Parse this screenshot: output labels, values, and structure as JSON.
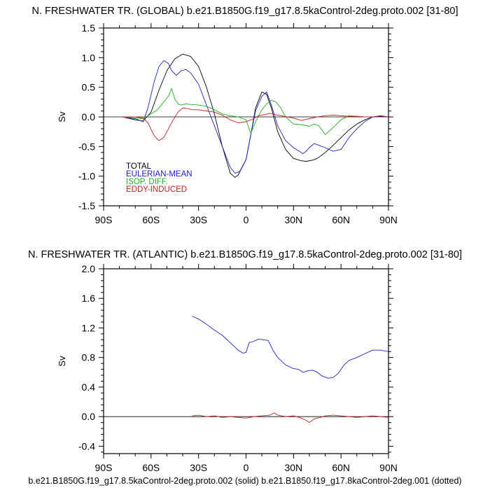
{
  "footer": "b.e21.B1850G.f19_g17.8.5kaControl-2deg.proto.002 (solid) b.e21.B1850.f19_g17.8kaControl-2deg.001 (dotted)",
  "chart_data": [
    {
      "type": "line",
      "title": "N. FRESHWATER TR. (GLOBAL) b.e21.B1850G.f19_g17.8.5kaControl-2deg.proto.002 [31-80]",
      "xlabel": "",
      "ylabel": "Sv",
      "xlim": [
        -90,
        90
      ],
      "ylim": [
        -1.5,
        1.5
      ],
      "x_ticks": [
        -90,
        -60,
        -30,
        0,
        30,
        60,
        90
      ],
      "x_tick_labels": [
        "90S",
        "60S",
        "30S",
        "0",
        "30N",
        "60N",
        "90N"
      ],
      "y_ticks": [
        -1.5,
        -1.0,
        -0.5,
        0.0,
        0.5,
        1.0,
        1.5
      ],
      "y_tick_labels": [
        "-1.5",
        "-1.0",
        "-0.5",
        "0.0",
        "0.5",
        "1.0",
        "1.5"
      ],
      "legend_position": "bottom-left",
      "zero_line": true,
      "series": [
        {
          "name": "TOTAL",
          "color": "#000000",
          "x": [
            -78,
            -70,
            -65,
            -60,
            -55,
            -50,
            -45,
            -40,
            -35,
            -30,
            -25,
            -20,
            -15,
            -10,
            -7,
            -5,
            0,
            3,
            6,
            10,
            13,
            16,
            20,
            25,
            30,
            35,
            38,
            42,
            45,
            50,
            55,
            60,
            65,
            70,
            75,
            80,
            85,
            90
          ],
          "y": [
            0,
            -0.05,
            -0.07,
            0.08,
            0.45,
            0.78,
            0.98,
            1.06,
            1.02,
            0.85,
            0.5,
            0.05,
            -0.5,
            -0.95,
            -1.02,
            -0.98,
            -0.72,
            -0.3,
            0.15,
            0.42,
            0.38,
            0.15,
            -0.25,
            -0.55,
            -0.7,
            -0.74,
            -0.75,
            -0.73,
            -0.7,
            -0.6,
            -0.48,
            -0.35,
            -0.22,
            -0.12,
            -0.05,
            0,
            0.01,
            0
          ]
        },
        {
          "name": "EULERIAN-MEAN",
          "color": "#2020c0",
          "x": [
            -78,
            -70,
            -65,
            -62,
            -58,
            -55,
            -52,
            -49,
            -47,
            -44,
            -41,
            -38,
            -35,
            -30,
            -25,
            -20,
            -15,
            -10,
            -7,
            -4,
            0,
            3,
            6,
            10,
            13,
            16,
            20,
            25,
            30,
            33,
            36,
            38,
            40,
            43,
            46,
            50,
            55,
            60,
            65,
            70,
            75,
            80,
            85,
            90
          ],
          "y": [
            0,
            -0.03,
            -0.08,
            0.15,
            0.6,
            0.85,
            0.95,
            0.9,
            0.78,
            0.7,
            0.78,
            0.8,
            0.74,
            0.55,
            0.2,
            -0.15,
            -0.5,
            -0.85,
            -0.95,
            -0.92,
            -0.72,
            -0.3,
            0.1,
            0.35,
            0.42,
            0.2,
            -0.15,
            -0.4,
            -0.52,
            -0.57,
            -0.62,
            -0.58,
            -0.52,
            -0.45,
            -0.48,
            -0.52,
            -0.58,
            -0.55,
            -0.35,
            -0.2,
            -0.08,
            0,
            0.02,
            0
          ]
        },
        {
          "name": "ISOP. DIFF.",
          "color": "#20b020",
          "x": [
            -78,
            -70,
            -65,
            -60,
            -56,
            -52,
            -49,
            -47,
            -45,
            -43,
            -41,
            -38,
            -35,
            -30,
            -25,
            -20,
            -15,
            -10,
            -5,
            0,
            3,
            6,
            10,
            13,
            16,
            19,
            22,
            25,
            30,
            35,
            40,
            43,
            46,
            50,
            55,
            60,
            65,
            70,
            75,
            80,
            85,
            90
          ],
          "y": [
            0,
            -0.02,
            -0.03,
            0.05,
            0.12,
            0.25,
            0.35,
            0.48,
            0.3,
            0.22,
            0.2,
            0.22,
            0.21,
            0.2,
            0.18,
            0.12,
            0.05,
            0.02,
            0,
            -0.05,
            -0.28,
            -0.08,
            0.12,
            0.22,
            0.28,
            0.25,
            0.15,
            0.0,
            -0.12,
            -0.13,
            -0.16,
            -0.12,
            -0.15,
            -0.3,
            -0.18,
            -0.05,
            0.02,
            0.01,
            0,
            0,
            0,
            0
          ]
        },
        {
          "name": "EDDY-INDUCED",
          "color": "#c02020",
          "x": [
            -78,
            -70,
            -65,
            -62,
            -58,
            -55,
            -52,
            -49,
            -46,
            -43,
            -40,
            -37,
            -34,
            -30,
            -25,
            -20,
            -15,
            -10,
            -5,
            0,
            4,
            8,
            12,
            15,
            18,
            22,
            26,
            30,
            35,
            40,
            45,
            50,
            55,
            60,
            65,
            70,
            75,
            80,
            85,
            90
          ],
          "y": [
            0,
            0,
            -0.02,
            -0.1,
            -0.32,
            -0.4,
            -0.35,
            -0.2,
            -0.05,
            0.08,
            0.15,
            0.14,
            0.12,
            0.12,
            0.1,
            0.08,
            0.03,
            -0.05,
            -0.1,
            -0.08,
            -0.04,
            0.02,
            0.04,
            0.06,
            0.04,
            0.02,
            0,
            -0.02,
            -0.06,
            -0.03,
            0,
            0.02,
            0.03,
            0.02,
            0.01,
            0.01,
            0,
            0,
            0,
            0
          ]
        }
      ]
    },
    {
      "type": "line",
      "title": "N. FRESHWATER TR. (ATLANTIC) b.e21.B1850G.f19_g17.8.5kaControl-2deg.proto.002 [31-80]",
      "xlabel": "",
      "ylabel": "Sv",
      "xlim": [
        -90,
        90
      ],
      "ylim": [
        -0.5,
        2.0
      ],
      "x_ticks": [
        -90,
        -60,
        -30,
        0,
        30,
        60,
        90
      ],
      "x_tick_labels": [
        "90S",
        "60S",
        "30S",
        "0",
        "30N",
        "60N",
        "90N"
      ],
      "y_ticks": [
        -0.4,
        0.0,
        0.4,
        0.8,
        1.2,
        1.6,
        2.0
      ],
      "y_tick_labels": [
        "-0.4",
        "0.0",
        "0.4",
        "0.8",
        "1.2",
        "1.6",
        "2.0"
      ],
      "zero_line": true,
      "series": [
        {
          "color": "#2020c0",
          "x": [
            -34,
            -30,
            -25,
            -20,
            -15,
            -10,
            -5,
            -2,
            0,
            2,
            5,
            8,
            11,
            14,
            17,
            20,
            25,
            30,
            33,
            36,
            39,
            42,
            45,
            48,
            52,
            55,
            58,
            62,
            65,
            70,
            75,
            80,
            85,
            90
          ],
          "y": [
            1.36,
            1.32,
            1.25,
            1.17,
            1.1,
            1.0,
            0.9,
            0.86,
            0.87,
            1.0,
            1.02,
            1.05,
            1.04,
            1.03,
            0.9,
            0.8,
            0.7,
            0.65,
            0.64,
            0.6,
            0.62,
            0.63,
            0.6,
            0.55,
            0.52,
            0.53,
            0.58,
            0.7,
            0.76,
            0.8,
            0.85,
            0.9,
            0.9,
            0.88
          ]
        },
        {
          "color": "#c02020",
          "x": [
            -34,
            -30,
            -25,
            -20,
            -15,
            -10,
            -5,
            0,
            5,
            10,
            15,
            18,
            20,
            25,
            30,
            35,
            38,
            40,
            43,
            47,
            50,
            55,
            60,
            65,
            70,
            75,
            80,
            85,
            90
          ],
          "y": [
            0.01,
            0.02,
            0.0,
            0.01,
            -0.01,
            0.0,
            -0.01,
            -0.02,
            0.0,
            0.01,
            0.02,
            0.05,
            0.02,
            0.0,
            0.01,
            -0.02,
            -0.05,
            -0.08,
            -0.03,
            -0.01,
            0.01,
            0.02,
            0.01,
            0.0,
            -0.01,
            0.0,
            0.01,
            0.0,
            -0.01
          ]
        }
      ]
    }
  ]
}
